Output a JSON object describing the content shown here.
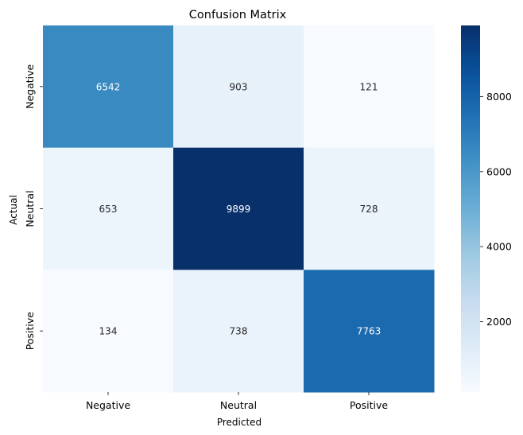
{
  "chart_data": {
    "type": "heatmap",
    "title": "Confusion Matrix",
    "xlabel": "Predicted",
    "ylabel": "Actual",
    "x_categories": [
      "Negative",
      "Neutral",
      "Positive"
    ],
    "y_categories": [
      "Negative",
      "Neutral",
      "Positive"
    ],
    "values": [
      [
        6542,
        903,
        121
      ],
      [
        653,
        9899,
        728
      ],
      [
        134,
        738,
        7763
      ]
    ],
    "colormap": "Blues",
    "colorbar": {
      "range": [
        121,
        9899
      ],
      "ticks": [
        2000,
        4000,
        6000,
        8000
      ]
    },
    "annotations": true,
    "grid": false
  }
}
